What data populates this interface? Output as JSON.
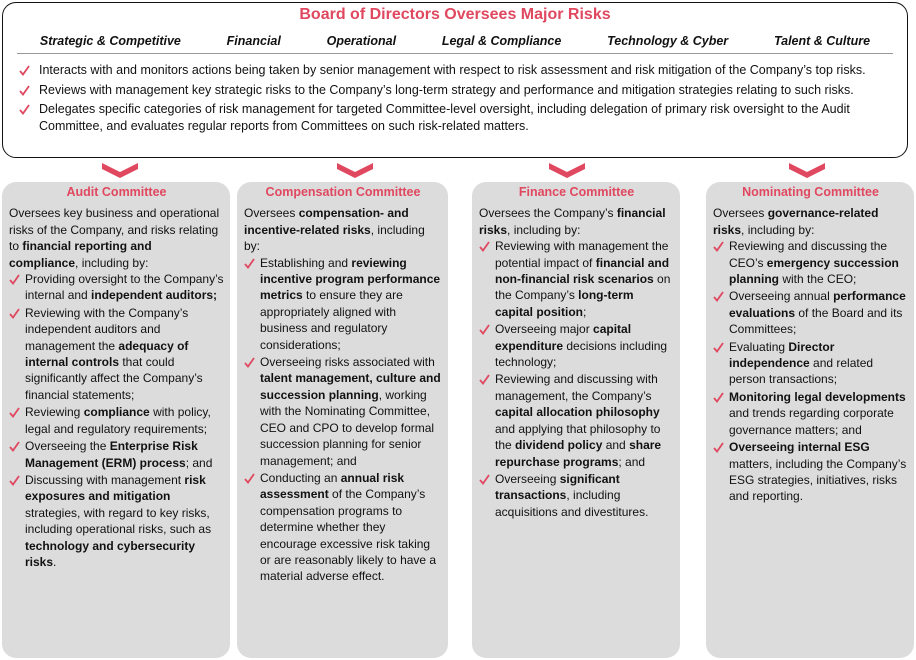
{
  "header": {
    "title": "Board of Directors Oversees Major Risks",
    "categories": [
      "Strategic & Competitive",
      "Financial",
      "Operational",
      "Legal & Compliance",
      "Technology & Cyber",
      "Talent & Culture"
    ],
    "bullets": [
      "Interacts with and monitors actions being taken by senior management with respect to risk assessment and risk mitigation of the Company’s top risks.",
      "Reviews with management key strategic risks to the Company’s long-term strategy and performance and mitigation strategies relating to such risks.",
      "Delegates specific categories of risk management for targeted Committee-level oversight, including delegation of primary risk oversight to the Audit Committee, and evaluates regular reports from Committees on such risk-related matters."
    ]
  },
  "committees": [
    {
      "title": "Audit Committee",
      "intro": [
        "Oversees key business and operational risks of the Company, and risks relating to ",
        {
          "b": "financial reporting and compliance"
        },
        ", including by:"
      ],
      "bullets": [
        [
          "Providing oversight to the Company’s internal and ",
          {
            "b": "independent auditors;"
          }
        ],
        [
          "Reviewing with the Company’s independent auditors and management the ",
          {
            "b": "adequacy of internal controls"
          },
          " that could significantly affect the Company’s financial statements;"
        ],
        [
          "Reviewing ",
          {
            "b": "compliance"
          },
          " with policy, legal and regulatory requirements;"
        ],
        [
          "Overseeing the ",
          {
            "b": "Enterprise Risk Management (ERM) process"
          },
          "; and"
        ],
        [
          "Discussing with management ",
          {
            "b": "risk exposures and mitigation"
          },
          " strategies, with regard to key risks, including operational risks, such as ",
          {
            "b": "technology and cybersecurity risks"
          },
          "."
        ]
      ]
    },
    {
      "title": "Compensation Committee",
      "intro": [
        "Oversees ",
        {
          "b": "compensation- and incentive-related risks"
        },
        ", including by:"
      ],
      "bullets": [
        [
          "Establishing and ",
          {
            "b": "reviewing incentive program performance metrics"
          },
          " to ensure they are appropriately aligned with business and regulatory considerations;"
        ],
        [
          "Overseeing risks associated with ",
          {
            "b": "talent management, culture and succession planning"
          },
          ", working with the Nominating Committee, CEO and CPO to develop formal succession planning for senior management; and"
        ],
        [
          "Conducting an ",
          {
            "b": "annual risk assessment"
          },
          " of the Company’s compensation programs to determine whether they encourage excessive risk taking or are reasonably likely to have a material adverse effect."
        ]
      ]
    },
    {
      "title": "Finance Committee",
      "intro": [
        "Oversees the Company’s ",
        {
          "b": "financial risks"
        },
        ", including by:"
      ],
      "bullets": [
        [
          "Reviewing with management the potential impact of ",
          {
            "b": "financial and non-financial risk scenarios"
          },
          " on the Company’s ",
          {
            "b": "long-term capital position"
          },
          ";"
        ],
        [
          "Overseeing major ",
          {
            "b": "capital expenditure"
          },
          " decisions including technology;"
        ],
        [
          "Reviewing and discussing with management, the Company’s ",
          {
            "b": "capital allocation philosophy"
          },
          " and applying that philosophy to the ",
          {
            "b": "dividend policy"
          },
          " and ",
          {
            "b": "share repurchase programs"
          },
          "; and"
        ],
        [
          "Overseeing ",
          {
            "b": "significant transactions"
          },
          ", including acquisitions and divestitures."
        ]
      ]
    },
    {
      "title": "Nominating Committee",
      "intro": [
        "Oversees ",
        {
          "b": "governance-related risks"
        },
        ", including by:"
      ],
      "bullets": [
        [
          "Reviewing and discussing the CEO’s ",
          {
            "b": "emergency succession planning"
          },
          " with the CEO;"
        ],
        [
          "Overseeing annual ",
          {
            "b": "performance evaluations"
          },
          " of the Board and its Committees;"
        ],
        [
          "Evaluating ",
          {
            "b": "Director independence"
          },
          " and related person transactions;"
        ],
        [
          {
            "b": "Monitoring legal developments"
          },
          " and trends regarding corporate governance matters; and"
        ],
        [
          {
            "b": "Overseeing internal ESG"
          },
          " matters, including the Company’s ESG strategies, initiatives, risks and reporting."
        ]
      ]
    }
  ]
}
